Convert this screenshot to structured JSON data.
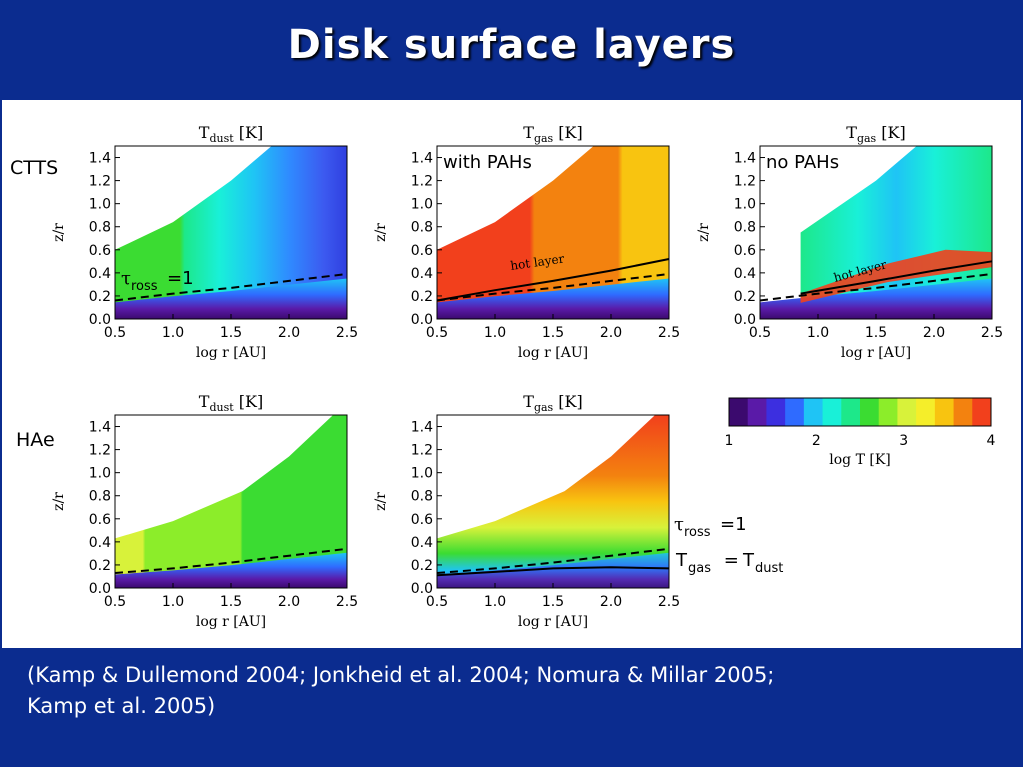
{
  "slide": {
    "title": "Disk surface layers",
    "citation_line1": "(Kamp & Dullemond 2004; Jonkheid et al. 2004; Nomura & Millar 2005;",
    "citation_line2": "Kamp et al. 2005)",
    "colors": {
      "background": "#0b2c8f",
      "content": "#ffffff",
      "title": "#ffffff"
    }
  },
  "row_labels": {
    "ctts": "CTTS",
    "hae": "HAe"
  },
  "annotations": {
    "with_pahs": "with PAHs",
    "no_pahs": "no PAHs",
    "hot_layer": "hot layer",
    "tau_symbol": "τ",
    "tau_sub": "ross",
    "tau_eq": "=1",
    "tgas_T": "T",
    "tgas_sub": "gas",
    "tgas_eq": " = ",
    "tdust_T": "T",
    "tdust_sub": "dust"
  },
  "chart_data": [
    {
      "type": "heatmap",
      "panel": "CTTS dust temperature",
      "title_main": "T",
      "title_sub": "dust",
      "title_unit": " [K]",
      "xlabel": "log r [AU]",
      "ylabel": "z/r",
      "xlim": [
        0.5,
        2.5
      ],
      "ylim": [
        0.0,
        1.5
      ],
      "xticks": [
        "0.5",
        "1.0",
        "1.5",
        "2.0",
        "2.5"
      ],
      "yticks": [
        "0.0",
        "0.2",
        "0.4",
        "0.6",
        "0.8",
        "1.0",
        "1.2",
        "1.4"
      ],
      "surface_x": [
        0.5,
        1.0,
        1.5,
        1.85
      ],
      "surface_y": [
        0.6,
        0.84,
        1.2,
        1.5
      ],
      "tau_ross_1_x": [
        0.5,
        1.0,
        1.5,
        2.0,
        2.5
      ],
      "tau_ross_1_y": [
        0.16,
        0.22,
        0.27,
        0.33,
        0.39
      ]
    },
    {
      "type": "heatmap",
      "panel": "CTTS gas temperature with PAHs",
      "title_main": "T",
      "title_sub": "gas",
      "title_unit": " [K]",
      "xlabel": "log r [AU]",
      "ylabel": "z/r",
      "xlim": [
        0.5,
        2.5
      ],
      "ylim": [
        0.0,
        1.5
      ],
      "xticks": [
        "0.5",
        "1.0",
        "1.5",
        "2.0",
        "2.5"
      ],
      "yticks": [
        "0.0",
        "0.2",
        "0.4",
        "0.6",
        "0.8",
        "1.0",
        "1.2",
        "1.4"
      ],
      "surface_x": [
        0.5,
        1.0,
        1.5,
        1.85
      ],
      "surface_y": [
        0.6,
        0.84,
        1.2,
        1.5
      ],
      "tau_ross_1_x": [
        0.5,
        1.0,
        1.5,
        2.0,
        2.5
      ],
      "tau_ross_1_y": [
        0.16,
        0.22,
        0.27,
        0.33,
        0.39
      ],
      "teq_x": [
        0.5,
        1.0,
        1.5,
        2.0,
        2.5
      ],
      "teq_y": [
        0.16,
        0.25,
        0.33,
        0.42,
        0.52
      ]
    },
    {
      "type": "heatmap",
      "panel": "CTTS gas temperature no PAHs",
      "title_main": "T",
      "title_sub": "gas",
      "title_unit": " [K]",
      "xlabel": "log r [AU]",
      "ylabel": "z/r",
      "xlim": [
        0.5,
        2.5
      ],
      "ylim": [
        0.0,
        1.5
      ],
      "xticks": [
        "0.5",
        "1.0",
        "1.5",
        "2.0",
        "2.5"
      ],
      "yticks": [
        "0.0",
        "0.2",
        "0.4",
        "0.6",
        "0.8",
        "1.0",
        "1.2",
        "1.4"
      ],
      "surface_x": [
        0.85,
        1.5,
        1.85
      ],
      "surface_y": [
        0.75,
        1.2,
        1.5
      ],
      "tau_ross_1_x": [
        0.5,
        1.0,
        1.5,
        2.0,
        2.5
      ],
      "tau_ross_1_y": [
        0.16,
        0.22,
        0.27,
        0.33,
        0.39
      ],
      "teq_x": [
        0.85,
        1.5,
        2.0,
        2.5
      ],
      "teq_y": [
        0.22,
        0.33,
        0.42,
        0.5
      ]
    },
    {
      "type": "heatmap",
      "panel": "HAe dust temperature",
      "title_main": "T",
      "title_sub": "dust",
      "title_unit": " [K]",
      "xlabel": "log r [AU]",
      "ylabel": "z/r",
      "xlim": [
        0.5,
        2.5
      ],
      "ylim": [
        0.0,
        1.5
      ],
      "xticks": [
        "0.5",
        "1.0",
        "1.5",
        "2.0",
        "2.5"
      ],
      "yticks": [
        "0.0",
        "0.2",
        "0.4",
        "0.6",
        "0.8",
        "1.0",
        "1.2",
        "1.4"
      ],
      "surface_x": [
        0.5,
        1.0,
        1.6,
        2.0,
        2.38
      ],
      "surface_y": [
        0.43,
        0.58,
        0.84,
        1.14,
        1.5
      ],
      "tau_ross_1_x": [
        0.5,
        1.0,
        1.5,
        2.0,
        2.5
      ],
      "tau_ross_1_y": [
        0.13,
        0.17,
        0.22,
        0.28,
        0.34
      ]
    },
    {
      "type": "heatmap",
      "panel": "HAe gas temperature",
      "title_main": "T",
      "title_sub": "gas",
      "title_unit": " [K]",
      "xlabel": "log r [AU]",
      "ylabel": "z/r",
      "xlim": [
        0.5,
        2.5
      ],
      "ylim": [
        0.0,
        1.5
      ],
      "xticks": [
        "0.5",
        "1.0",
        "1.5",
        "2.0",
        "2.5"
      ],
      "yticks": [
        "0.0",
        "0.2",
        "0.4",
        "0.6",
        "0.8",
        "1.0",
        "1.2",
        "1.4"
      ],
      "surface_x": [
        0.5,
        1.0,
        1.6,
        2.0,
        2.38
      ],
      "surface_y": [
        0.43,
        0.58,
        0.84,
        1.14,
        1.5
      ],
      "tau_ross_1_x": [
        0.5,
        1.0,
        1.5,
        2.0,
        2.5
      ],
      "tau_ross_1_y": [
        0.13,
        0.17,
        0.22,
        0.28,
        0.34
      ],
      "teq_x": [
        0.5,
        1.0,
        1.5,
        2.0,
        2.5
      ],
      "teq_y": [
        0.11,
        0.14,
        0.17,
        0.18,
        0.17
      ]
    },
    {
      "type": "colorbar",
      "xlabel": "log T [K]",
      "range": [
        1,
        4
      ],
      "ticks": [
        "1",
        "2",
        "3",
        "4"
      ],
      "colors": [
        "#3b0a6e",
        "#5a1aa8",
        "#3c2fe0",
        "#2f6bff",
        "#1fc4f5",
        "#19f0d8",
        "#1de88a",
        "#3bdc32",
        "#8ced2a",
        "#d8f23a",
        "#f5ee2a",
        "#f8c410",
        "#f3820f",
        "#f2401c"
      ]
    }
  ]
}
